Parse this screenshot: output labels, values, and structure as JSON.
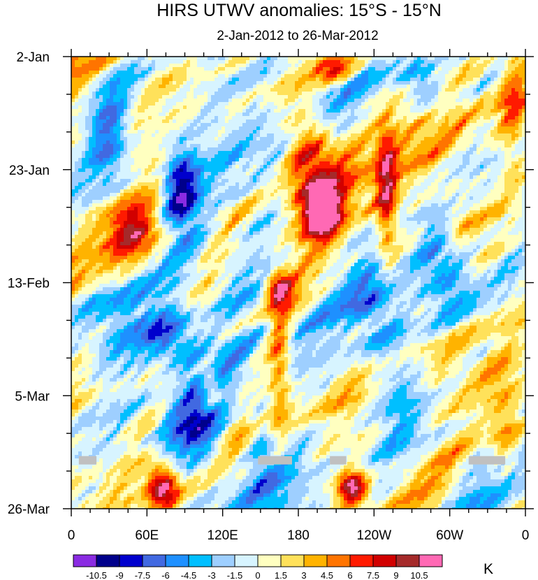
{
  "chart_data": {
    "type": "heatmap",
    "title": "HIRS UTWV anomalies: 15°S - 15°N",
    "subtitle": "2-Jan-2012 to 26-Mar-2012",
    "x_tick_labels": [
      "0",
      "60E",
      "120E",
      "180",
      "120W",
      "60W",
      "0"
    ],
    "x_tick_lons": [
      0,
      60,
      120,
      180,
      240,
      300,
      360
    ],
    "xlim": [
      0,
      360
    ],
    "y_tick_labels": [
      "2-Jan",
      "23-Jan",
      "13-Feb",
      "5-Mar",
      "26-Mar"
    ],
    "y_tick_days": [
      0,
      21,
      42,
      63,
      84
    ],
    "ylim": [
      0,
      84
    ],
    "colorbar_levels": [
      "-10.5",
      "-9",
      "-7.5",
      "-6",
      "-4.5",
      "-3",
      "-1.5",
      "0",
      "1.5",
      "3",
      "4.5",
      "6",
      "7.5",
      "9",
      "10.5"
    ],
    "colorbar_colors": [
      "#8a2be2",
      "#00008b",
      "#0000cd",
      "#4169e1",
      "#1e90ff",
      "#00bfff",
      "#9ecfff",
      "#d7f4ff",
      "#ffffc0",
      "#ffe15a",
      "#ffb300",
      "#ff7400",
      "#ff1a00",
      "#d10000",
      "#a52a2a",
      "#ff69b4"
    ],
    "units_label": "K",
    "missing_color": "#c0c0c0",
    "anomaly_features": [
      {
        "lon": 200,
        "day": 29,
        "value": 11.5,
        "spread_lon": 12,
        "spread_day": 4
      },
      {
        "lon": 195,
        "day": 24,
        "value": 7,
        "spread_lon": 22,
        "spread_day": 10
      },
      {
        "lon": 183,
        "day": 15,
        "value": 5,
        "spread_lon": 18,
        "spread_day": 10
      },
      {
        "lon": 165,
        "day": 43,
        "value": 8,
        "spread_lon": 12,
        "spread_day": 3
      },
      {
        "lon": 165,
        "day": 55,
        "value": 5,
        "spread_lon": 8,
        "spread_day": 14
      },
      {
        "lon": 207,
        "day": 2,
        "value": 6,
        "spread_lon": 18,
        "spread_day": 3
      },
      {
        "lon": 223,
        "day": 80,
        "value": 11,
        "spread_lon": 12,
        "spread_day": 3
      },
      {
        "lon": 72,
        "day": 80,
        "value": 10,
        "spread_lon": 12,
        "spread_day": 4
      },
      {
        "lon": 50,
        "day": 32,
        "value": 6,
        "spread_lon": 20,
        "spread_day": 5
      },
      {
        "lon": 250,
        "day": 25,
        "value": 8,
        "spread_lon": 8,
        "spread_day": 12
      },
      {
        "lon": 305,
        "day": 30,
        "value": 4,
        "spread_lon": 15,
        "spread_day": 8
      },
      {
        "lon": 350,
        "day": 10,
        "value": 4,
        "spread_lon": 10,
        "spread_day": 12
      },
      {
        "lon": 345,
        "day": 68,
        "value": 5,
        "spread_lon": 15,
        "spread_day": 10
      },
      {
        "lon": 110,
        "day": 61,
        "value": 6,
        "spread_lon": 8,
        "spread_day": 4
      },
      {
        "lon": 87,
        "day": 25,
        "value": -9,
        "spread_lon": 14,
        "spread_day": 8
      },
      {
        "lon": 82,
        "day": 53,
        "value": -7,
        "spread_lon": 22,
        "spread_day": 5
      },
      {
        "lon": 100,
        "day": 70,
        "value": -7,
        "spread_lon": 25,
        "spread_day": 8
      },
      {
        "lon": 300,
        "day": 40,
        "value": -6,
        "spread_lon": 22,
        "spread_day": 10
      },
      {
        "lon": 25,
        "day": 45,
        "value": -4,
        "spread_lon": 25,
        "spread_day": 8
      },
      {
        "lon": 260,
        "day": 63,
        "value": -5,
        "spread_lon": 25,
        "spread_day": 10
      },
      {
        "lon": 240,
        "day": 46,
        "value": -5,
        "spread_lon": 20,
        "spread_day": 8
      },
      {
        "lon": 30,
        "day": 15,
        "value": -5,
        "spread_lon": 15,
        "spread_day": 10
      },
      {
        "lon": 280,
        "day": 5,
        "value": -5,
        "spread_lon": 15,
        "spread_day": 5
      },
      {
        "lon": 150,
        "day": 72,
        "value": -4,
        "spread_lon": 12,
        "spread_day": 8
      }
    ],
    "missing_segments": [
      {
        "lon_start": 6,
        "lon_end": 20,
        "day": 75
      },
      {
        "lon_start": 148,
        "lon_end": 175,
        "day": 75
      },
      {
        "lon_start": 205,
        "lon_end": 218,
        "day": 75
      },
      {
        "lon_start": 315,
        "lon_end": 344,
        "day": 75
      }
    ]
  }
}
